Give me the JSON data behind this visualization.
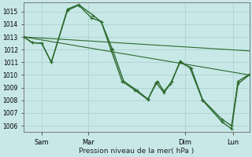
{
  "background_color": "#c8e8e8",
  "grid_color": "#a8cccc",
  "line_color": "#2d6a2d",
  "xlabel": "Pression niveau de la mer( hPa )",
  "ylim": [
    1005.5,
    1015.7
  ],
  "yticks": [
    1006,
    1007,
    1008,
    1009,
    1010,
    1011,
    1012,
    1013,
    1014,
    1015
  ],
  "xlim": [
    0,
    7.0
  ],
  "xtick_positions": [
    0.55,
    2.0,
    5.0,
    6.5
  ],
  "xtick_labels": [
    "Sam",
    "Mar",
    "Dim",
    "Lun"
  ],
  "series": [
    {
      "x": [
        0.0,
        7.0
      ],
      "y": [
        1013.0,
        1011.9
      ],
      "style": "line_only",
      "linewidth": 0.8
    },
    {
      "x": [
        0.0,
        7.0
      ],
      "y": [
        1013.0,
        1010.0
      ],
      "style": "line_only",
      "linewidth": 0.8
    },
    {
      "x": [
        0.0,
        0.25,
        0.55,
        0.85,
        1.35,
        1.7,
        2.1,
        2.4,
        2.7,
        3.05,
        3.45,
        3.85,
        4.1,
        4.35,
        4.55,
        4.85,
        5.15,
        5.55,
        6.15,
        6.45,
        6.65,
        7.0
      ],
      "y": [
        1013.0,
        1012.55,
        1012.5,
        1011.0,
        1015.1,
        1015.5,
        1014.5,
        1014.2,
        1012.0,
        1009.5,
        1008.8,
        1008.05,
        1009.4,
        1008.6,
        1009.3,
        1011.0,
        1010.6,
        1008.0,
        1006.3,
        1005.75,
        1009.3,
        1010.0
      ],
      "style": "line_marker",
      "linewidth": 1.0,
      "markersize": 3.0
    },
    {
      "x": [
        0.0,
        0.25,
        0.55,
        0.85,
        1.35,
        1.7,
        2.15,
        2.4,
        2.75,
        3.1,
        3.5,
        3.85,
        4.15,
        4.35,
        4.6,
        4.85,
        5.2,
        5.55,
        6.15,
        6.45,
        6.65,
        7.0
      ],
      "y": [
        1013.0,
        1012.55,
        1012.5,
        1011.0,
        1015.2,
        1015.55,
        1014.7,
        1014.2,
        1012.0,
        1009.5,
        1008.8,
        1008.1,
        1009.5,
        1008.7,
        1009.5,
        1011.1,
        1010.5,
        1008.05,
        1006.5,
        1006.0,
        1009.5,
        1010.05
      ],
      "style": "line_marker",
      "linewidth": 1.0,
      "markersize": 3.0
    }
  ]
}
